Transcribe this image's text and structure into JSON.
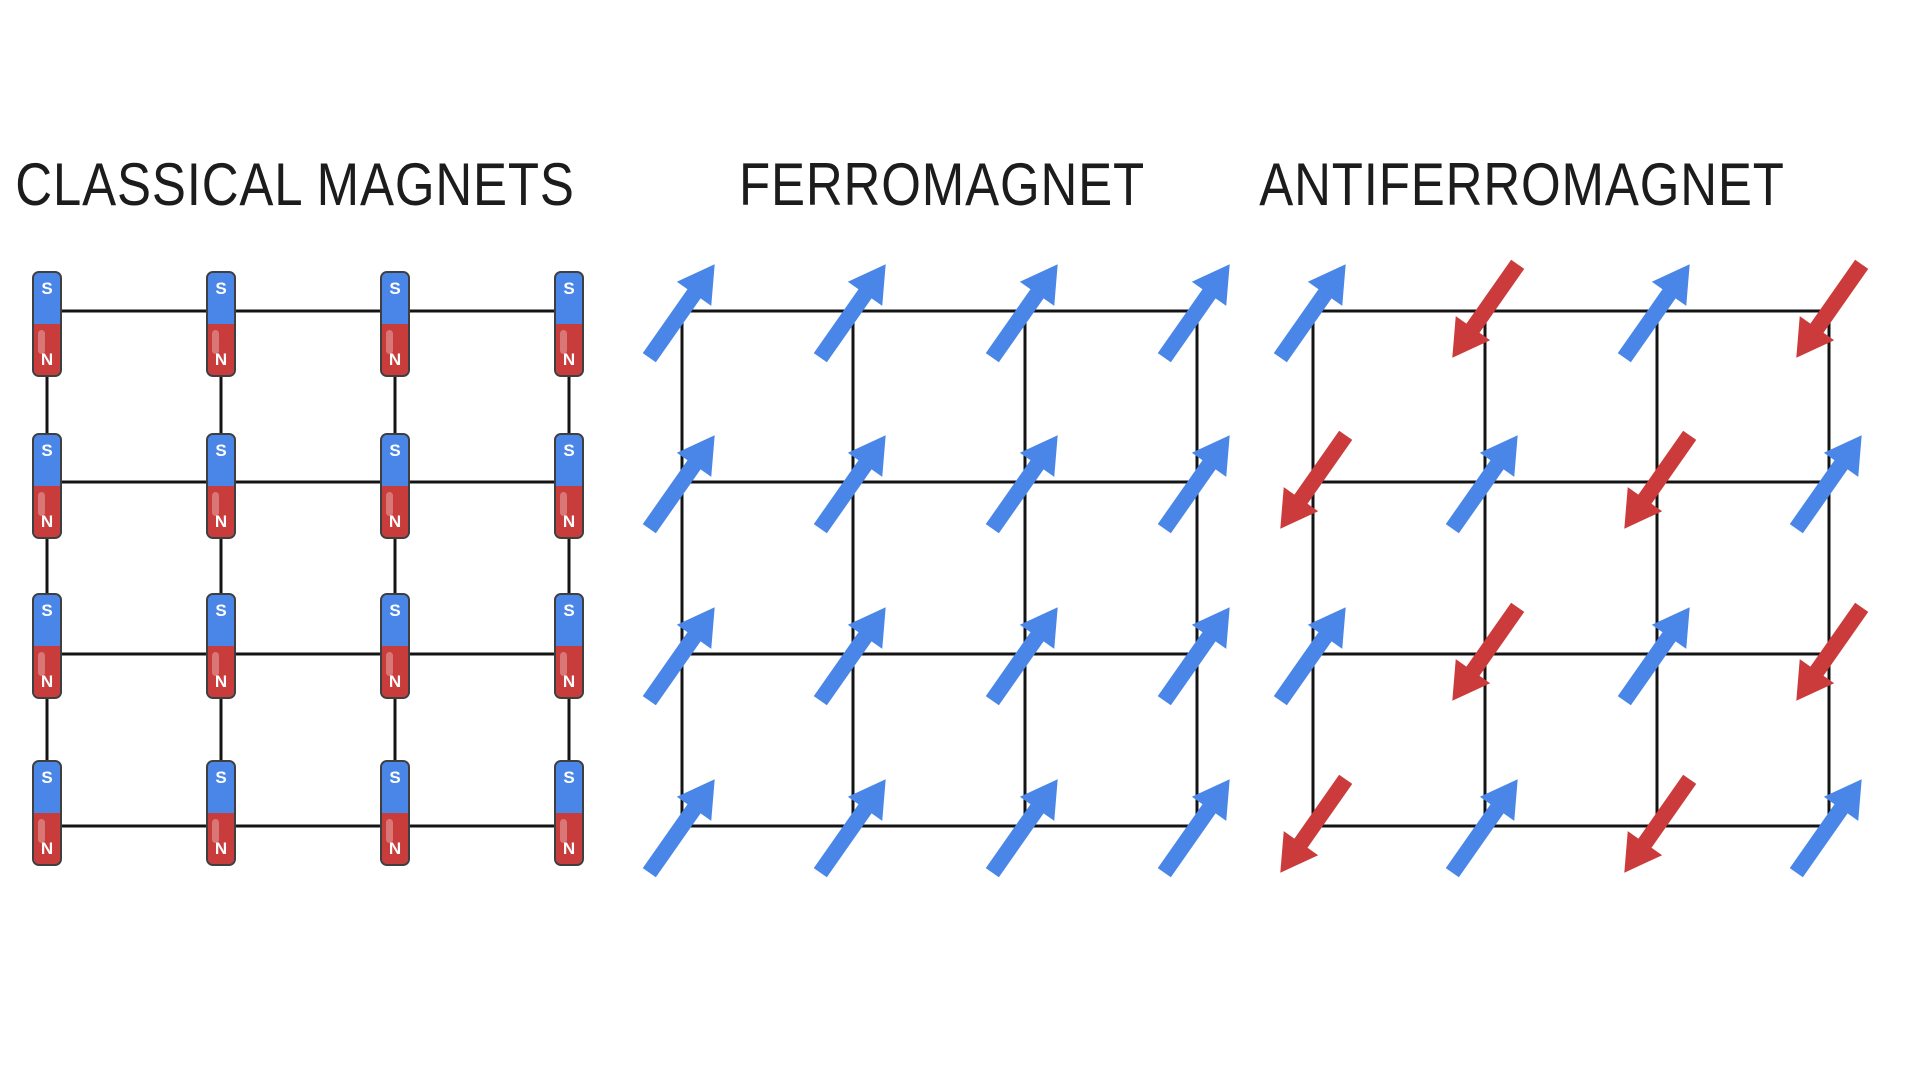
{
  "page": {
    "background_color": "#ffffff",
    "title_color": "#1c1c1c",
    "lattice_line_color": "#141414"
  },
  "legend": {
    "spin_up_color": "#4a86e8",
    "spin_down_color": "#cc3b3b",
    "magnet_south_color": "#4a86e8",
    "magnet_north_color": "#c93c3c",
    "magnet_border_color": "#3f3f3f"
  },
  "panels": {
    "classical": {
      "title": "CLASSICAL MAGNETS",
      "grid_rows": 4,
      "grid_cols": 4,
      "magnet_labels": {
        "top": "S",
        "bottom": "N"
      }
    },
    "ferromagnet": {
      "title": "FERROMAGNET",
      "spin_pattern": [
        [
          "up",
          "up",
          "up",
          "up"
        ],
        [
          "up",
          "up",
          "up",
          "up"
        ],
        [
          "up",
          "up",
          "up",
          "up"
        ],
        [
          "up",
          "up",
          "up",
          "up"
        ]
      ]
    },
    "antiferromagnet": {
      "title": "ANTIFERROMAGNET",
      "spin_pattern": [
        [
          "up",
          "down",
          "up",
          "down"
        ],
        [
          "down",
          "up",
          "down",
          "up"
        ],
        [
          "up",
          "down",
          "up",
          "down"
        ],
        [
          "down",
          "up",
          "down",
          "up"
        ]
      ]
    }
  }
}
